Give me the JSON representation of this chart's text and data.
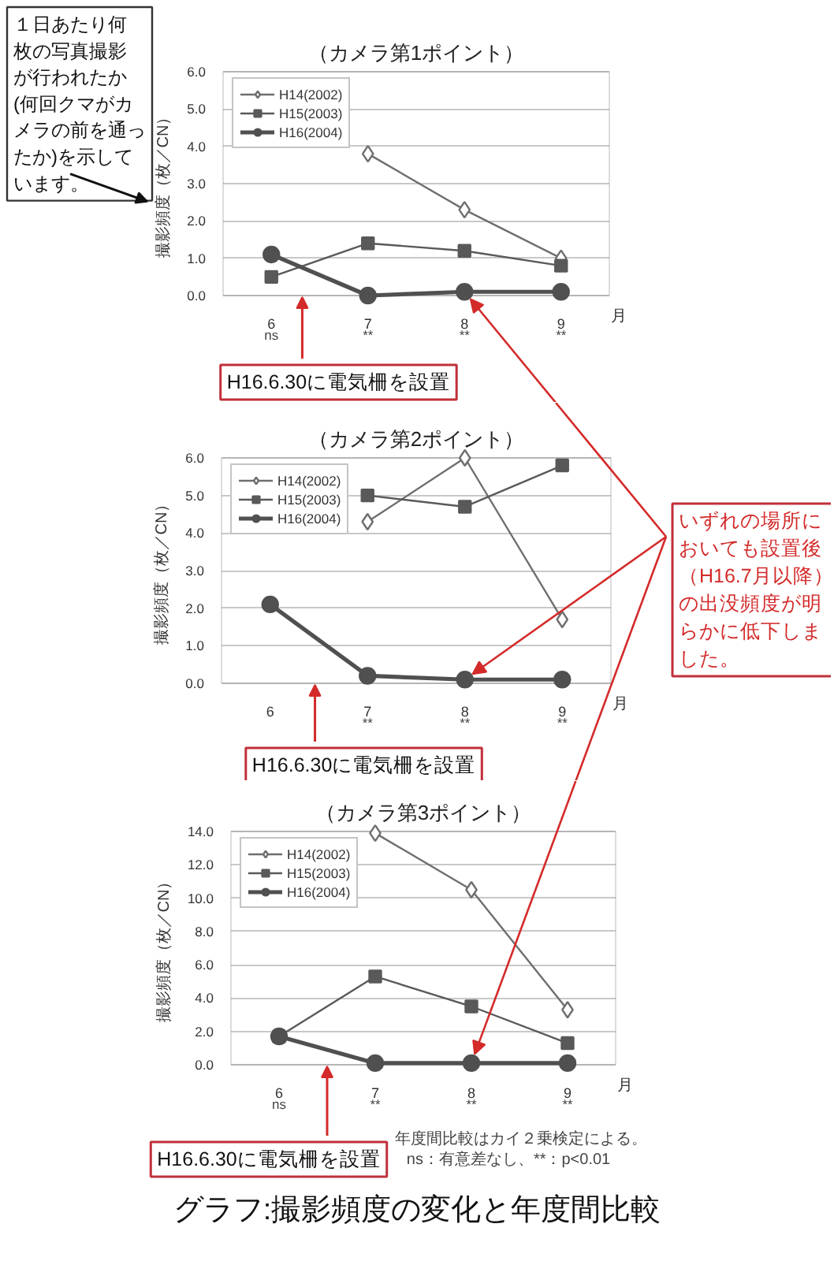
{
  "chart_data": [
    {
      "type": "line",
      "title": "（カメラ第1ポイント）",
      "xlabel": "月",
      "ylabel": "撮影頻度（枚／CN）",
      "categories": [
        "6",
        "7",
        "8",
        "9"
      ],
      "series": [
        {
          "name": "H14(2002)",
          "color": "#6e6e6e",
          "marker": "diamond",
          "values": [
            null,
            3.8,
            2.3,
            1.0
          ]
        },
        {
          "name": "H15(2003)",
          "color": "#595959",
          "marker": "square",
          "values": [
            0.5,
            1.4,
            1.2,
            0.8
          ]
        },
        {
          "name": "H16(2004)",
          "color": "#505050",
          "marker": "circle",
          "values": [
            1.1,
            0.0,
            0.1,
            0.1
          ]
        }
      ],
      "ylim": [
        0,
        6
      ],
      "yticks": [
        {
          "value": 0,
          "label": "0.0"
        },
        {
          "value": 1,
          "label": "1.0"
        },
        {
          "value": 2,
          "label": "2.0"
        },
        {
          "value": 3,
          "label": "3.0"
        },
        {
          "value": 4,
          "label": "4.0"
        },
        {
          "value": 5,
          "label": "5.0"
        },
        {
          "value": 6,
          "label": "6.0"
        }
      ],
      "grid": "y",
      "legend": "top left",
      "annotations": [
        "１日あたり何枚の写真撮影が行われたか(何回クマがカメラの前を通ったか)を示しています。",
        "H16.6.30に電気柵を設置",
        "ns",
        "**",
        "**",
        "**"
      ]
    },
    {
      "type": "line",
      "title": "（カメラ第2ポイント）",
      "xlabel": "月",
      "ylabel": "撮影頻度（枚／CN）",
      "categories": [
        "6",
        "7",
        "8",
        "9"
      ],
      "series": [
        {
          "name": "H14(2002)",
          "color": "#6e6e6e",
          "marker": "diamond",
          "values": [
            null,
            4.3,
            6.0,
            1.7
          ]
        },
        {
          "name": "H15(2003)",
          "color": "#595959",
          "marker": "square",
          "values": [
            null,
            5.0,
            4.7,
            5.8
          ]
        },
        {
          "name": "H16(2004)",
          "color": "#505050",
          "marker": "circle",
          "values": [
            2.1,
            0.2,
            0.1,
            0.1
          ]
        }
      ],
      "ylim": [
        0,
        6
      ],
      "yticks": [
        {
          "value": 0,
          "label": "0.0"
        },
        {
          "value": 1,
          "label": "1.0"
        },
        {
          "value": 2,
          "label": "2.0"
        },
        {
          "value": 3,
          "label": "3.0"
        },
        {
          "value": 4,
          "label": "4.0"
        },
        {
          "value": 5,
          "label": "5.0"
        },
        {
          "value": 6,
          "label": "6.0"
        }
      ],
      "grid": "y",
      "legend": "top left",
      "annotations": [
        "H16.6.30に電気柵を設置",
        {
          "text": "いずれの場所においても設置後（H16.7月以降）の出没頻度が明らかに低下しました。",
          "x": "8",
          "y": 0.1
        },
        "**",
        "**",
        "**"
      ]
    },
    {
      "type": "line",
      "title": "（カメラ第3ポイント）",
      "xlabel": "月",
      "ylabel": "撮影頻度（枚／CN）",
      "categories": [
        "6",
        "7",
        "8",
        "9"
      ],
      "series": [
        {
          "name": "H14(2002)",
          "color": "#6e6e6e",
          "marker": "diamond",
          "values": [
            null,
            13.9,
            10.5,
            3.3
          ]
        },
        {
          "name": "H15(2003)",
          "color": "#595959",
          "marker": "square",
          "values": [
            1.7,
            5.3,
            3.5,
            1.3
          ]
        },
        {
          "name": "H16(2004)",
          "color": "#505050",
          "marker": "circle",
          "values": [
            1.7,
            0.1,
            0.1,
            0.1
          ]
        }
      ],
      "ylim": [
        0,
        14
      ],
      "yticks": [
        {
          "value": 0,
          "label": "0.0"
        },
        {
          "value": 2,
          "label": "2.0"
        },
        {
          "value": 4,
          "label": "4.0"
        },
        {
          "value": 6,
          "label": "6.0"
        },
        {
          "value": 8,
          "label": "8.0"
        },
        {
          "value": 10,
          "label": "10.0"
        },
        {
          "value": 12,
          "label": "12.0"
        },
        {
          "value": 14,
          "label": "14.0"
        }
      ],
      "grid": "y",
      "legend": "top left",
      "annotations": [
        "H16.6.30に電気柵を設置",
        "年度間比較はカイ２乗検定による。",
        "ns：有意差なし、**：p<0.01",
        "グラフ:撮影頻度の変化と年度間比較",
        "ns",
        "**",
        "**",
        "**"
      ]
    }
  ]
}
